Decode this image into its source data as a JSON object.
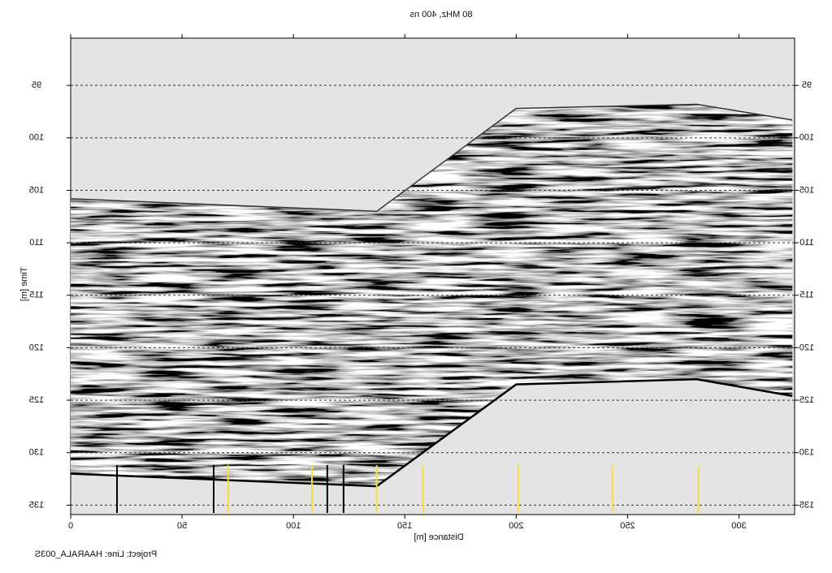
{
  "chart_data": {
    "type": "radargram",
    "title": "80 MHz, 400 ns",
    "x_label": "Distance [m]",
    "y_label": "Time [m]",
    "footer": "Project:  Line: HAARALA_003S",
    "mirrored_text": true,
    "y_inverted": true,
    "grid": true,
    "xlim": [
      0,
      325
    ],
    "xticks": [
      0,
      50,
      100,
      150,
      200,
      250,
      300
    ],
    "ylim": [
      90.5,
      135.9
    ],
    "yticks": [
      95,
      100,
      105,
      110,
      115,
      120,
      125,
      130,
      135
    ],
    "surface": {
      "color": "#333333",
      "x": [
        0,
        137.4,
        200,
        281,
        324
      ],
      "values": [
        105.8,
        107.0,
        97.2,
        96.8,
        98.3
      ]
    },
    "base": {
      "color": "#000000",
      "x": [
        0,
        137.4,
        200,
        281,
        324
      ],
      "values": [
        132.0,
        133.2,
        123.5,
        123.0,
        124.6
      ]
    },
    "markers": [
      {
        "x": 20.8,
        "color": "#000000"
      },
      {
        "x": 64.2,
        "color": "#000000"
      },
      {
        "x": 70.7,
        "color": "#f5e03a"
      },
      {
        "x": 108.3,
        "color": "#f5e03a"
      },
      {
        "x": 115.2,
        "color": "#000000"
      },
      {
        "x": 122.5,
        "color": "#000000"
      },
      {
        "x": 137.4,
        "color": "#f5e03a"
      },
      {
        "x": 158.2,
        "color": "#f5e03a"
      },
      {
        "x": 200.9,
        "color": "#f5e03a"
      },
      {
        "x": 243.2,
        "color": "#f5e03a"
      },
      {
        "x": 281.8,
        "color": "#f5e03a"
      }
    ]
  }
}
